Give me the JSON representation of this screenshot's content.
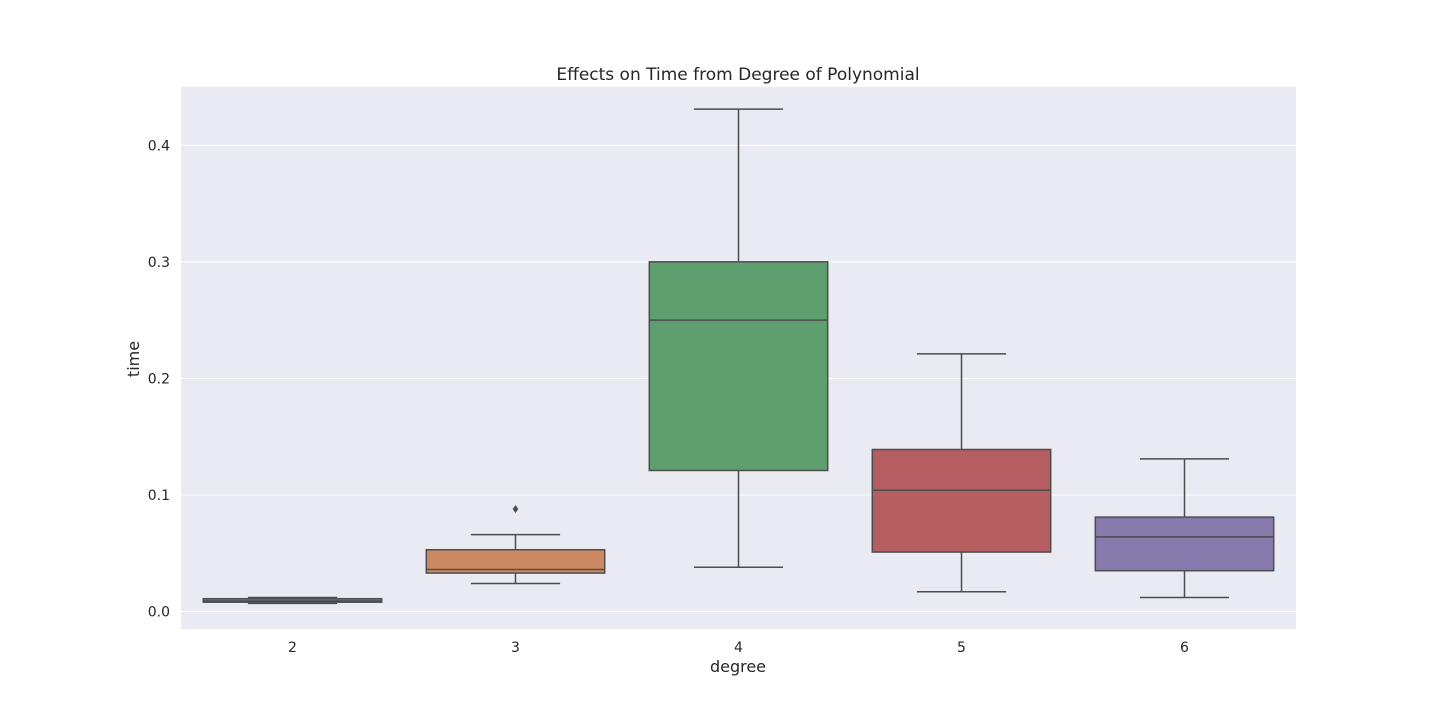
{
  "chart_data": {
    "type": "box",
    "title": "Effects on Time from Degree of Polynomial",
    "xlabel": "degree",
    "ylabel": "time",
    "ylim": [
      -0.015,
      0.45
    ],
    "yticks": [
      0.0,
      0.1,
      0.2,
      0.3,
      0.4
    ],
    "ytick_labels": [
      "0.0",
      "0.1",
      "0.2",
      "0.3",
      "0.4"
    ],
    "grid": true,
    "categories": [
      "2",
      "3",
      "4",
      "5",
      "6"
    ],
    "boxes": [
      {
        "category": "2",
        "whisker_low": 0.007,
        "q1": 0.008,
        "median": 0.009,
        "q3": 0.011,
        "whisker_high": 0.012,
        "outliers": [],
        "color": "#5a7fa8"
      },
      {
        "category": "3",
        "whisker_low": 0.024,
        "q1": 0.033,
        "median": 0.036,
        "q3": 0.053,
        "whisker_high": 0.066,
        "outliers": [
          0.088
        ],
        "color": "#cc8963"
      },
      {
        "category": "4",
        "whisker_low": 0.038,
        "q1": 0.121,
        "median": 0.25,
        "q3": 0.3,
        "whisker_high": 0.431,
        "outliers": [],
        "color": "#5f9e6e"
      },
      {
        "category": "5",
        "whisker_low": 0.017,
        "q1": 0.051,
        "median": 0.104,
        "q3": 0.139,
        "whisker_high": 0.221,
        "outliers": [],
        "color": "#b55d60"
      },
      {
        "category": "6",
        "whisker_low": 0.012,
        "q1": 0.035,
        "median": 0.064,
        "q3": 0.081,
        "whisker_high": 0.131,
        "outliers": [],
        "color": "#857aab"
      }
    ],
    "colors": {
      "plot_background": "#eaeaf2",
      "grid": "#ffffff",
      "line": "#4d4d4d"
    }
  }
}
